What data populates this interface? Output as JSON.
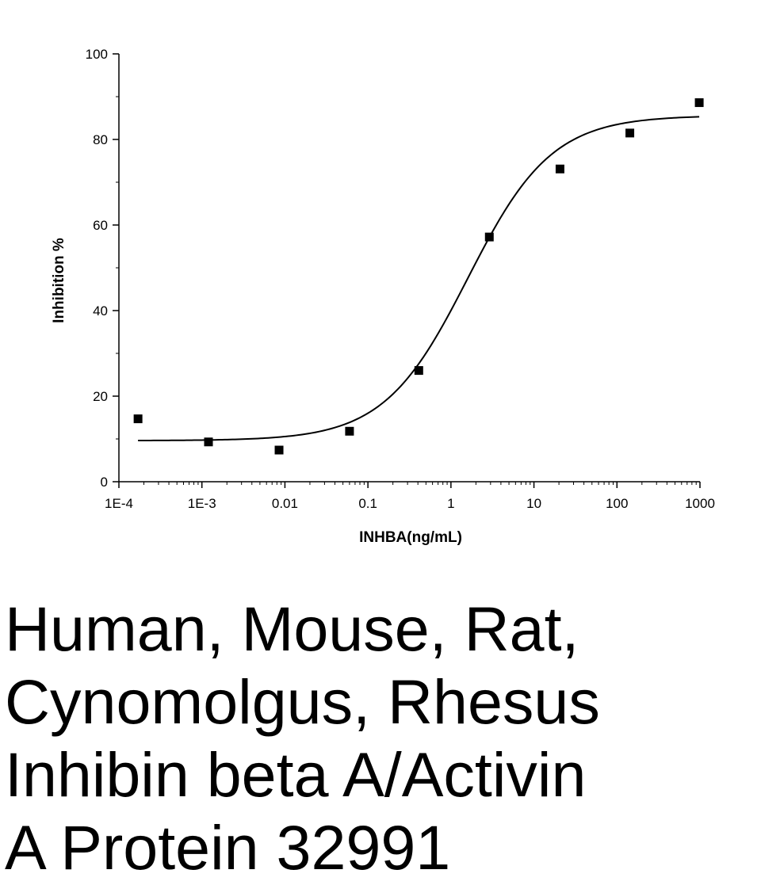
{
  "chart_data": {
    "type": "scatter",
    "title": "",
    "xlabel": "INHBA(ng/mL)",
    "ylabel": "Inhibition %",
    "x_scale": "log",
    "xlim": [
      0.0001,
      1000
    ],
    "ylim": [
      0,
      100
    ],
    "x_ticks": [
      0.0001,
      0.001,
      0.01,
      0.1,
      1,
      10,
      100,
      1000
    ],
    "x_tick_labels": [
      "1E-4",
      "1E-3",
      "0.01",
      "0.1",
      "1",
      "10",
      "100",
      "1000"
    ],
    "y_ticks": [
      0,
      20,
      40,
      60,
      80,
      100
    ],
    "y_tick_labels": [
      "0",
      "20",
      "40",
      "60",
      "80",
      "100"
    ],
    "grid": false,
    "series": [
      {
        "x": [
          0.00017,
          0.0012,
          0.0085,
          0.06,
          0.41,
          2.9,
          20.6,
          143,
          980
        ],
        "y": [
          14.7,
          9.3,
          7.4,
          11.8,
          26.0,
          57.2,
          73.1,
          81.5,
          88.6
        ],
        "marker": "square",
        "color": "#000000"
      }
    ],
    "fit_curve": {
      "model": "4PL",
      "bottom": 9.6,
      "top": 85.6,
      "ec50": 1.6,
      "hill": 0.86,
      "x_range": [
        0.00017,
        980
      ],
      "color": "#000000"
    }
  },
  "caption": {
    "lines": [
      "Human, Mouse, Rat,",
      "Cynomolgus, Rhesus",
      "Inhibin beta A/Activin",
      "A Protein 32991"
    ]
  }
}
